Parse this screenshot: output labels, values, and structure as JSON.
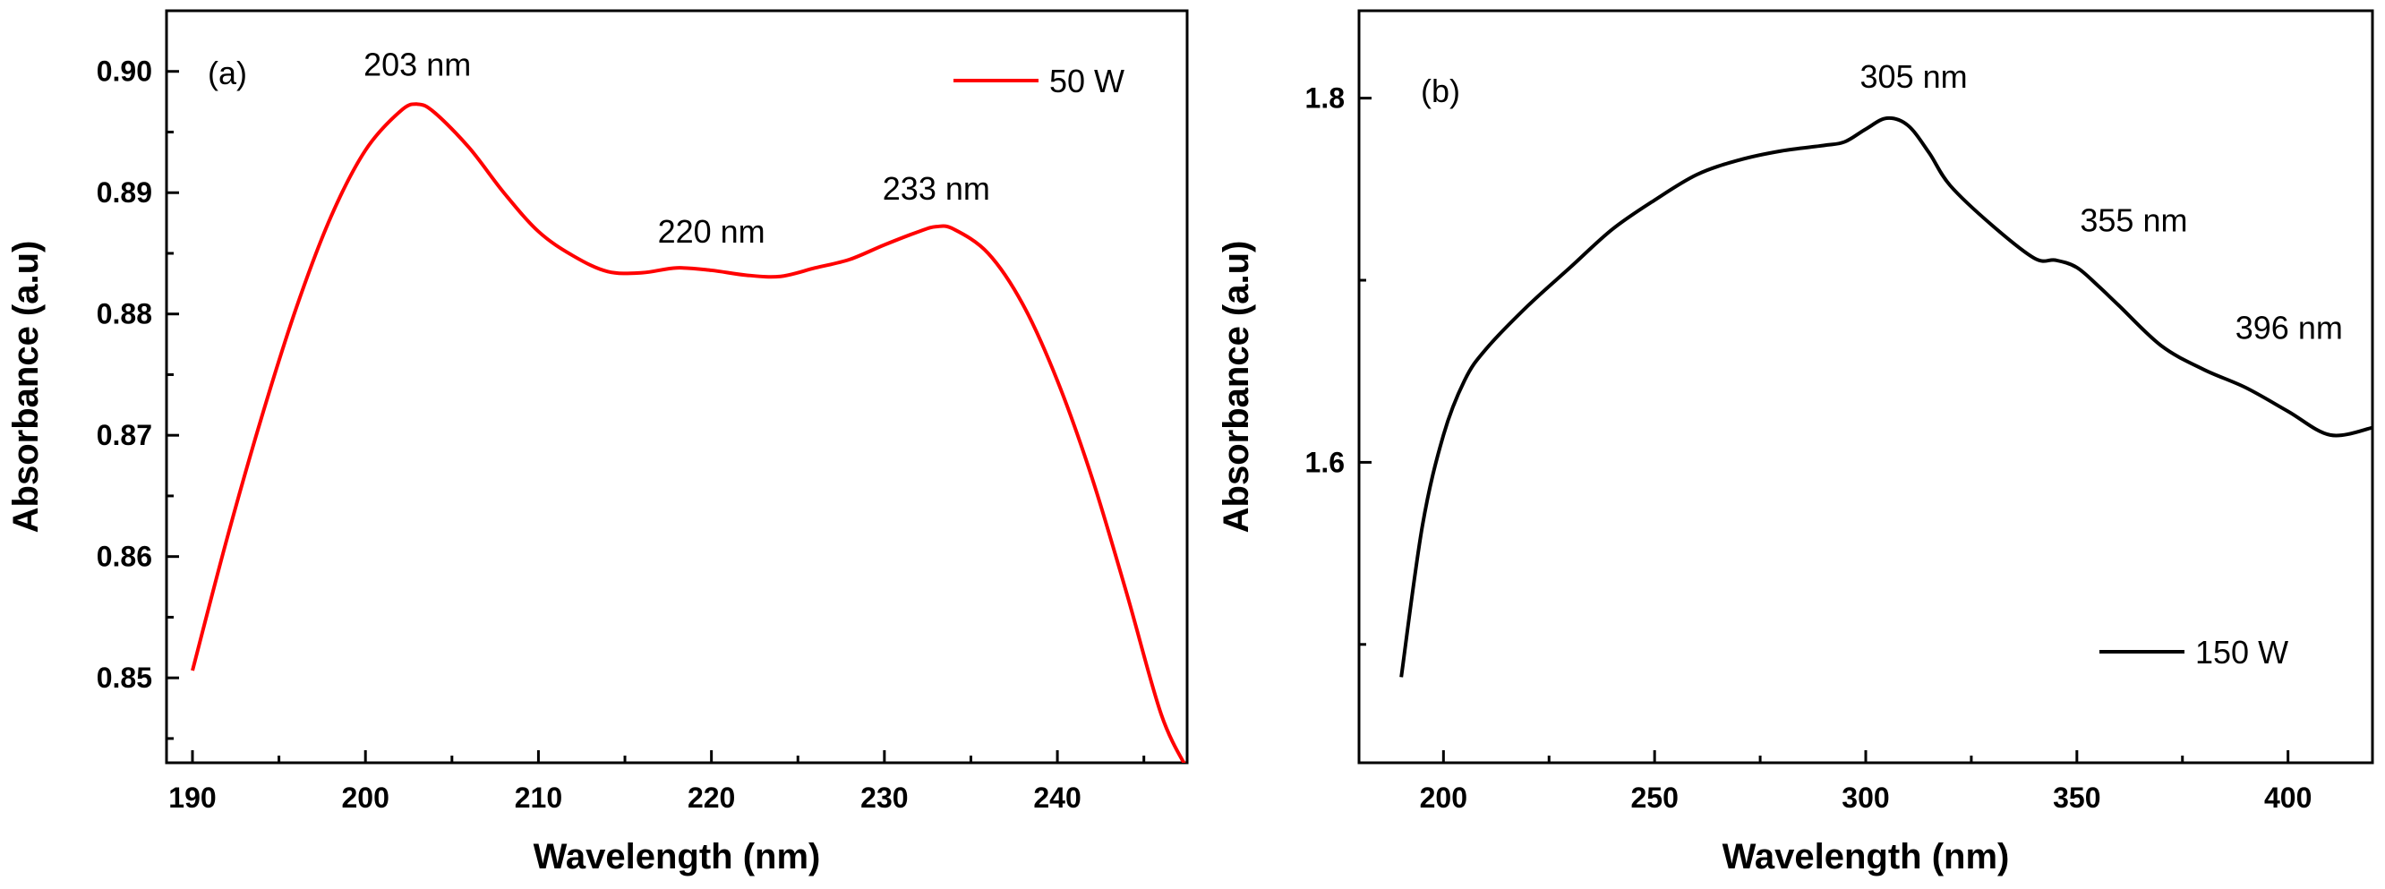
{
  "chart_data": [
    {
      "type": "line",
      "panel_label": "(a)",
      "xlabel": "Wavelength (nm)",
      "ylabel": "Absorbance (a.u)",
      "xlim": [
        188.5,
        247.5
      ],
      "ylim": [
        0.843,
        0.905
      ],
      "xticks": [
        190,
        200,
        210,
        220,
        230,
        240
      ],
      "yticks": [
        0.85,
        0.86,
        0.87,
        0.88,
        0.89,
        0.9
      ],
      "xtick_labels": [
        "190",
        "200",
        "210",
        "220",
        "230",
        "240"
      ],
      "ytick_labels": [
        "0.85",
        "0.86",
        "0.87",
        "0.88",
        "0.89",
        "0.90"
      ],
      "legend": {
        "position": "top-right",
        "label": "50 W",
        "color": "#ff0000"
      },
      "series": [
        {
          "name": "50 W",
          "color": "#ff0000",
          "x": [
            190,
            192,
            194,
            196,
            198,
            200,
            202,
            203,
            204,
            206,
            208,
            210,
            212,
            214,
            216,
            218,
            220,
            222,
            224,
            226,
            228,
            230,
            232,
            233,
            234,
            236,
            238,
            240,
            242,
            244,
            246,
            247.5
          ],
          "y": [
            0.8506,
            0.8615,
            0.8715,
            0.8805,
            0.888,
            0.8935,
            0.8967,
            0.8973,
            0.8966,
            0.8937,
            0.89,
            0.8868,
            0.8848,
            0.8835,
            0.8834,
            0.8838,
            0.8836,
            0.8832,
            0.8831,
            0.8838,
            0.8845,
            0.8857,
            0.8868,
            0.8872,
            0.887,
            0.885,
            0.8808,
            0.8745,
            0.8665,
            0.857,
            0.847,
            0.8425
          ]
        }
      ],
      "annotations": [
        {
          "text": "203 nm",
          "x": 203,
          "y": 0.8973
        },
        {
          "text": "220 nm",
          "x": 220,
          "y": 0.8838
        },
        {
          "text": "233 nm",
          "x": 233,
          "y": 0.8872
        }
      ]
    },
    {
      "type": "line",
      "panel_label": "(b)",
      "xlabel": "Wavelength (nm)",
      "ylabel": "Absorbance (a.u)",
      "xlim": [
        180,
        420
      ],
      "ylim": [
        1.435,
        1.848
      ],
      "xticks": [
        200,
        250,
        300,
        350,
        400
      ],
      "yticks": [
        1.6,
        1.8
      ],
      "xtick_labels": [
        "200",
        "250",
        "300",
        "350",
        "400"
      ],
      "ytick_labels": [
        "1.6",
        "1.8"
      ],
      "legend": {
        "position": "bottom-right",
        "label": "150 W",
        "color": "#000000"
      },
      "series": [
        {
          "name": "150 W",
          "color": "#000000",
          "x": [
            190,
            195,
            200,
            205,
            210,
            220,
            230,
            240,
            250,
            260,
            270,
            280,
            290,
            295,
            300,
            305,
            310,
            315,
            320,
            330,
            340,
            345,
            350,
            355,
            360,
            370,
            380,
            390,
            400,
            410,
            420
          ],
          "y": [
            1.482,
            1.565,
            1.615,
            1.645,
            1.662,
            1.686,
            1.707,
            1.728,
            1.744,
            1.758,
            1.766,
            1.771,
            1.774,
            1.776,
            1.783,
            1.789,
            1.785,
            1.77,
            1.752,
            1.73,
            1.712,
            1.711,
            1.707,
            1.697,
            1.686,
            1.664,
            1.651,
            1.641,
            1.628,
            1.615,
            1.619
          ]
        }
      ],
      "annotations": [
        {
          "text": "305 nm",
          "x": 305,
          "y": 1.789
        },
        {
          "text": "355 nm",
          "x": 355,
          "y": 1.711
        },
        {
          "text": "396 nm",
          "x": 396,
          "y": 1.651
        }
      ]
    }
  ]
}
